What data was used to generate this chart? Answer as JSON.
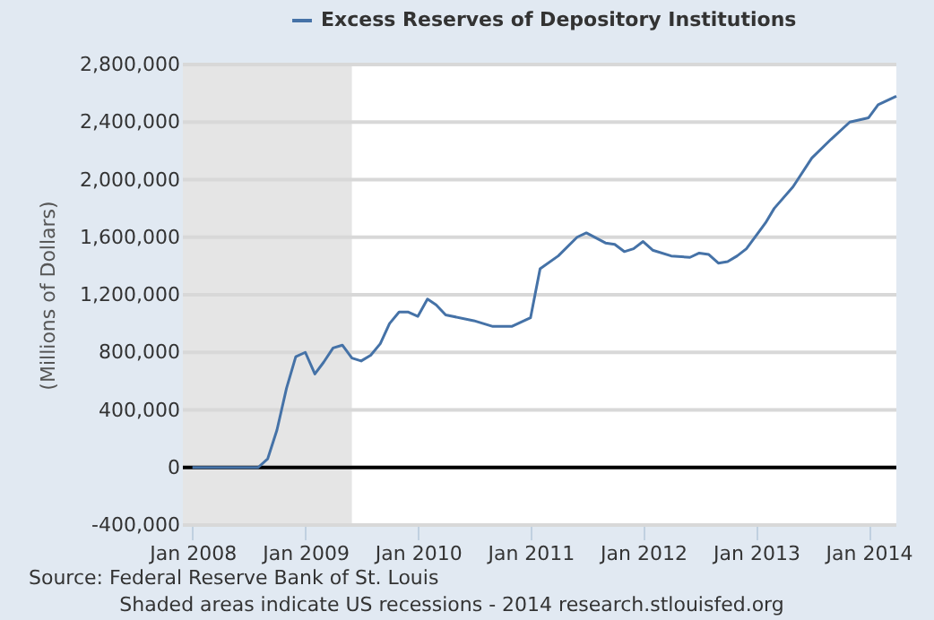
{
  "chart_data": {
    "type": "line",
    "x": [
      "2008-01",
      "2008-02",
      "2008-03",
      "2008-04",
      "2008-05",
      "2008-06",
      "2008-07",
      "2008-08",
      "2008-09",
      "2008-10",
      "2008-11",
      "2008-12",
      "2009-01",
      "2009-02",
      "2009-03",
      "2009-04",
      "2009-05",
      "2009-06",
      "2009-07",
      "2009-08",
      "2009-09",
      "2009-10",
      "2009-11",
      "2009-12",
      "2010-01",
      "2010-02",
      "2010-03",
      "2010-04",
      "2010-07",
      "2010-09",
      "2010-11",
      "2011-01",
      "2011-02",
      "2011-04",
      "2011-06",
      "2011-07",
      "2011-09",
      "2011-10",
      "2011-11",
      "2011-12",
      "2012-01",
      "2012-02",
      "2012-04",
      "2012-06",
      "2012-07",
      "2012-08",
      "2012-09",
      "2012-10",
      "2012-11",
      "2012-12",
      "2013-02",
      "2013-03",
      "2013-05",
      "2013-07",
      "2013-09",
      "2013-11",
      "2014-01",
      "2014-02",
      "2014-04"
    ],
    "series": [
      {
        "name": "Excess Reserves of Depository Institutions",
        "color": "#4572a7",
        "values": [
          0,
          0,
          0,
          0,
          0,
          0,
          0,
          0,
          60000,
          260000,
          550000,
          770000,
          800000,
          650000,
          730000,
          830000,
          850000,
          760000,
          740000,
          780000,
          860000,
          1000000,
          1080000,
          1080000,
          1050000,
          1170000,
          1130000,
          1060000,
          1020000,
          980000,
          980000,
          1040000,
          1380000,
          1470000,
          1600000,
          1630000,
          1560000,
          1550000,
          1500000,
          1520000,
          1570000,
          1510000,
          1470000,
          1460000,
          1490000,
          1480000,
          1420000,
          1430000,
          1470000,
          1520000,
          1700000,
          1800000,
          1950000,
          2150000,
          2280000,
          2400000,
          2430000,
          2520000,
          2580000
        ]
      }
    ],
    "xlim": [
      "2007-12",
      "2014-04"
    ],
    "xticks": [
      {
        "value": "2008-01",
        "label": "Jan 2008"
      },
      {
        "value": "2009-01",
        "label": "Jan 2009"
      },
      {
        "value": "2010-01",
        "label": "Jan 2010"
      },
      {
        "value": "2011-01",
        "label": "Jan 2011"
      },
      {
        "value": "2012-01",
        "label": "Jan 2012"
      },
      {
        "value": "2013-01",
        "label": "Jan 2013"
      },
      {
        "value": "2014-01",
        "label": "Jan 2014"
      }
    ],
    "ylim": [
      -400000,
      2800000
    ],
    "yticks": [
      {
        "value": -400000,
        "label": "-400,000"
      },
      {
        "value": 0,
        "label": "0"
      },
      {
        "value": 400000,
        "label": "400,000"
      },
      {
        "value": 800000,
        "label": "800,000"
      },
      {
        "value": 1200000,
        "label": "1,200,000"
      },
      {
        "value": 1600000,
        "label": "1,600,000"
      },
      {
        "value": 2000000,
        "label": "2,000,000"
      },
      {
        "value": 2400000,
        "label": "2,400,000"
      },
      {
        "value": 2800000,
        "label": "2,800,000"
      }
    ],
    "ylabel": "(Millions of Dollars)",
    "grid": "y",
    "legend": "top",
    "line_style": "solid",
    "ref_lines": [
      {
        "axis": "y",
        "value": 0,
        "color": "#000000"
      }
    ],
    "bands": [
      {
        "axis": "x",
        "from": "2007-12",
        "to": "2009-06",
        "color": "#e5e5e5"
      }
    ],
    "annotations": [
      "Source: Federal Reserve Bank of St. Louis",
      "Shaded areas indicate US recessions - 2014 research.stlouisfed.org"
    ]
  }
}
